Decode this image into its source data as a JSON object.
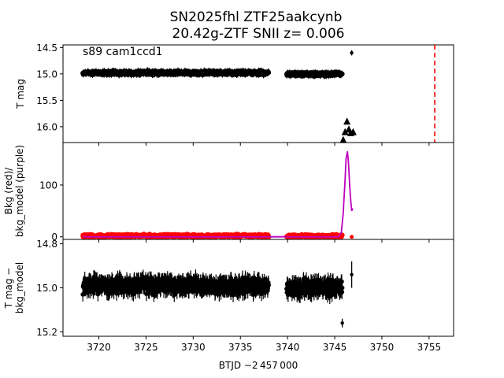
{
  "title_line1": "SN2025fhl  ZTF25aakcynb",
  "title_line2": "20.42g-ZTF SNII z= 0.006",
  "annotation": "s89 cam1ccd1",
  "xlabel": "BTJD −2 457 000",
  "colors": {
    "data": "#000000",
    "bkg": "#ff0000",
    "model": "#bf00bf",
    "marker_line": "#ff0000"
  },
  "chart_data": [
    {
      "type": "scatter",
      "panel": "top",
      "ylabel": "T mag",
      "yaxis_inverted": true,
      "xlim": [
        3716.2,
        3757.6
      ],
      "ylim": [
        16.3,
        14.45
      ],
      "x_ticks": [
        3720,
        3725,
        3730,
        3735,
        3740,
        3745,
        3750,
        3755
      ],
      "y_ticks": [
        14.5,
        15.0,
        15.5,
        16.0
      ],
      "y_tick_labels": [
        "14.5",
        "15.0",
        "15.5",
        "16.0"
      ],
      "segments": [
        {
          "x_start": 3718.3,
          "x_end": 3738.0,
          "mag_mean": 14.98,
          "mag_spread": 0.05
        },
        {
          "x_start": 3739.9,
          "x_end": 3745.8,
          "mag_mean": 15.0,
          "mag_spread": 0.05
        }
      ],
      "detection": {
        "x": 3746.8,
        "y": 14.6,
        "err": 0.05
      },
      "upper_limits": [
        {
          "x": 3745.9,
          "y": 16.25
        },
        {
          "x": 3746.1,
          "y": 16.1
        },
        {
          "x": 3746.3,
          "y": 15.9
        },
        {
          "x": 3746.5,
          "y": 16.05
        },
        {
          "x": 3746.7,
          "y": 16.12
        },
        {
          "x": 3746.95,
          "y": 16.1
        }
      ],
      "vline_x": 3755.6
    },
    {
      "type": "line",
      "panel": "middle",
      "ylabel": "Bkg (red)/\nbkg_model (purple)",
      "xlim": [
        3716.2,
        3757.6
      ],
      "ylim": [
        -5,
        182
      ],
      "y_ticks": [
        0,
        100
      ],
      "y_tick_labels": [
        "0",
        "100"
      ],
      "bkg_points": {
        "segments": [
          {
            "x_start": 3718.3,
            "x_end": 3738.0,
            "mean": 2,
            "spread": 4
          },
          {
            "x_start": 3739.9,
            "x_end": 3745.8,
            "mean": 1.5,
            "spread": 4
          }
        ],
        "extra": [
          {
            "x": 3746.8,
            "y": 0
          }
        ]
      },
      "bkg_model": [
        [
          3718.3,
          0
        ],
        [
          3738.0,
          0
        ],
        [
          3739.9,
          0
        ],
        [
          3745.4,
          0
        ],
        [
          3745.7,
          8
        ],
        [
          3745.9,
          45
        ],
        [
          3746.1,
          110
        ],
        [
          3746.2,
          150
        ],
        [
          3746.35,
          165
        ],
        [
          3746.45,
          145
        ],
        [
          3746.6,
          95
        ],
        [
          3746.7,
          70
        ],
        [
          3746.8,
          50
        ],
        [
          3746.9,
          55
        ]
      ]
    },
    {
      "type": "scatter",
      "panel": "bottom",
      "ylabel": "T mag −\nbkg_model",
      "yaxis_inverted": true,
      "xlim": [
        3716.2,
        3757.6
      ],
      "ylim": [
        15.22,
        14.78
      ],
      "x_ticks": [
        3720,
        3725,
        3730,
        3735,
        3740,
        3745,
        3750,
        3755
      ],
      "x_tick_labels": [
        "3720",
        "3725",
        "3730",
        "3735",
        "3740",
        "3745",
        "3750",
        "3755"
      ],
      "y_ticks": [
        14.8,
        15.0,
        15.2
      ],
      "y_tick_labels": [
        "14.8",
        "15.0",
        "15.2"
      ],
      "segments": [
        {
          "x_start": 3718.3,
          "x_end": 3738.0,
          "mean": 14.99,
          "spread": 0.05
        },
        {
          "x_start": 3739.9,
          "x_end": 3745.8,
          "mean": 15.0,
          "spread": 0.05
        }
      ],
      "outliers": [
        {
          "x": 3745.8,
          "y": 15.16,
          "err": 0.02
        }
      ],
      "detection": {
        "x": 3746.8,
        "y": 14.94,
        "err": 0.06
      }
    }
  ]
}
